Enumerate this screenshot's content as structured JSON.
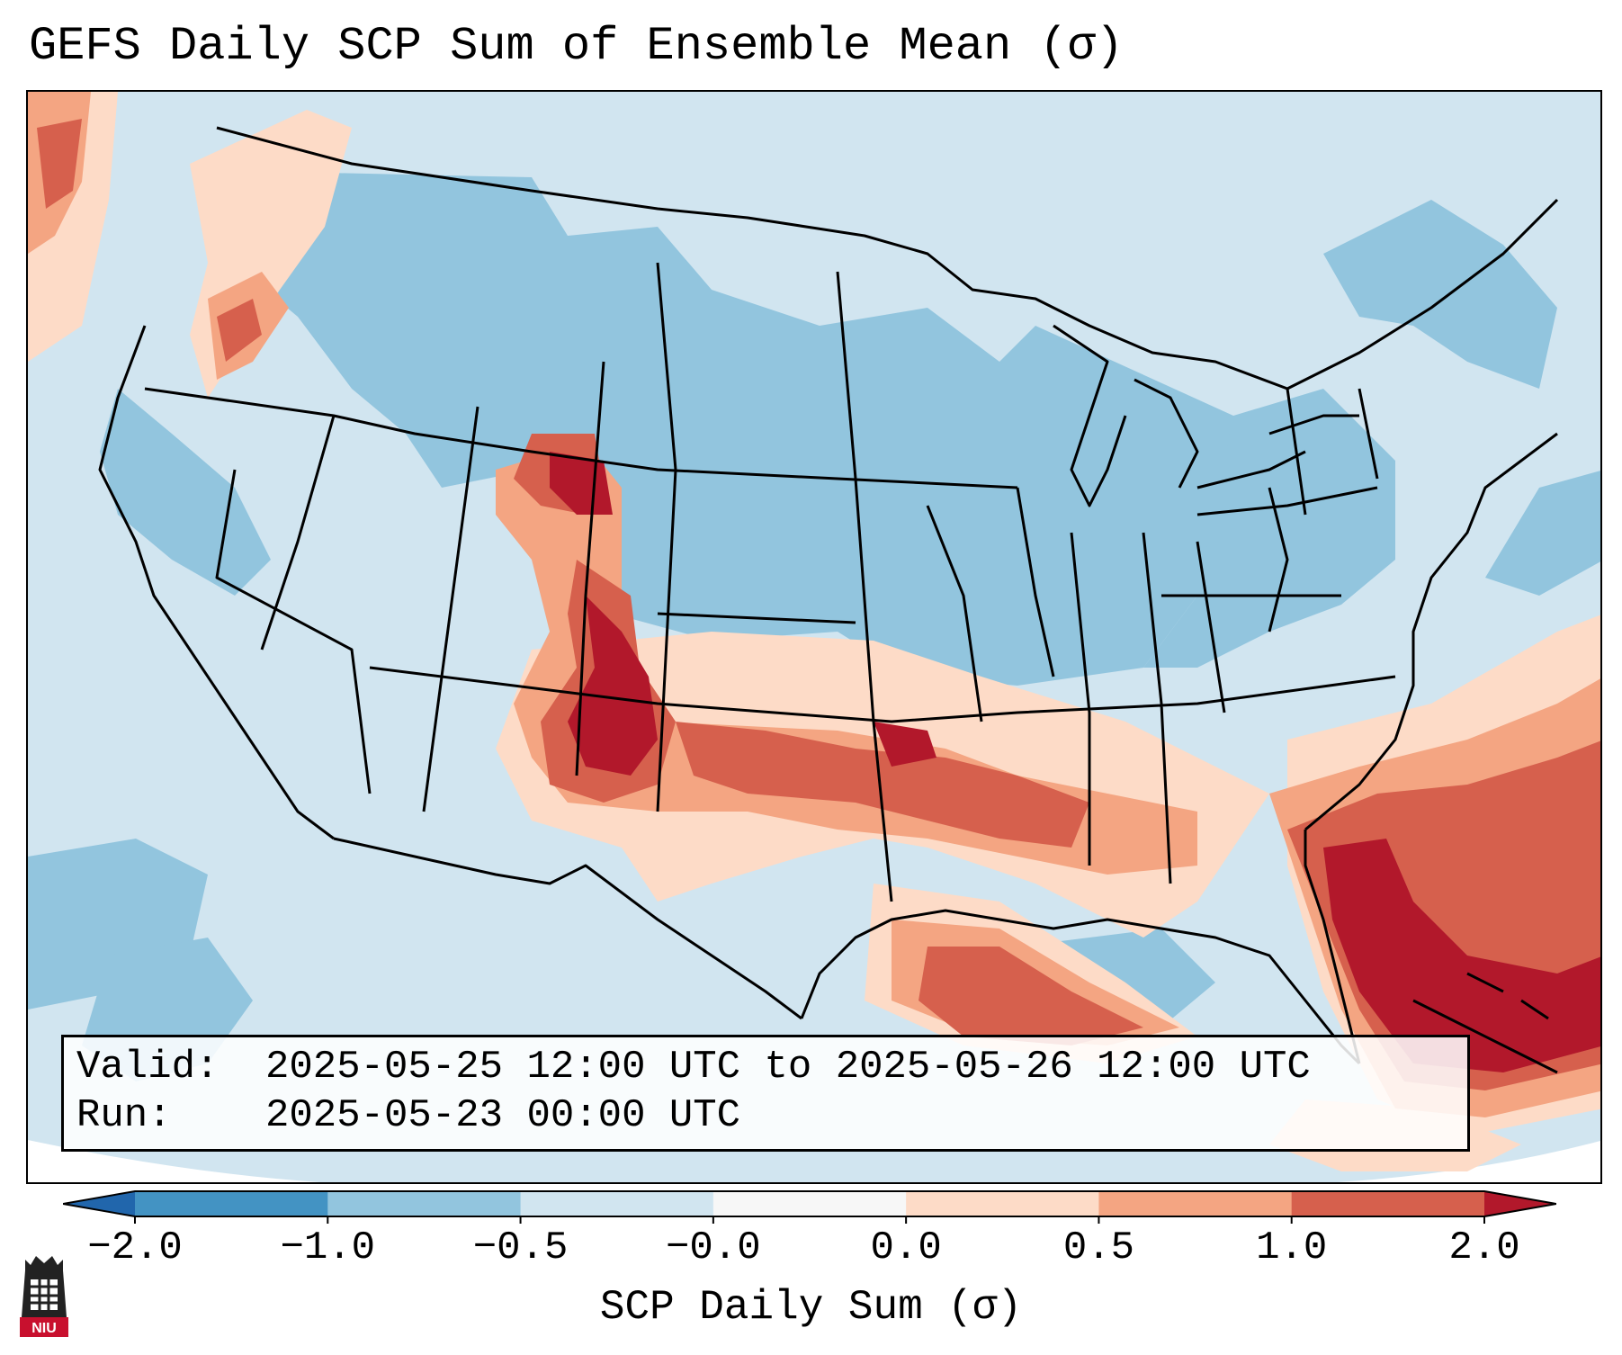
{
  "title": "GEFS Daily SCP Sum of Ensemble Mean (σ)",
  "map": {
    "background_color": "#d1e5f0",
    "ocean_corner_color": "#ffffff",
    "border_color": "#000000",
    "field_regions": [
      {
        "name": "pacific-nw-positive",
        "category": "0.0 to 0.5"
      },
      {
        "name": "plains-dryline-high",
        "category": "1.0 to 2.0"
      },
      {
        "name": "southern-tier-moderate",
        "category": "0.5 to 1.0"
      },
      {
        "name": "gulf-positive",
        "category": "0.5 to 1.0"
      },
      {
        "name": "atlantic-southeast-high",
        "category": "1.0 to 2.0"
      },
      {
        "name": "interior-negative",
        "category": "-1.0 to -0.5"
      },
      {
        "name": "northeast-negative",
        "category": "-1.0 to -0.5"
      }
    ]
  },
  "info_box": {
    "valid_label": "Valid:",
    "valid_value": "2025-05-25 12:00 UTC to 2025-05-26 12:00 UTC",
    "run_label": "Run:",
    "run_value": "2025-05-23 00:00 UTC"
  },
  "colorbar": {
    "label": "SCP Daily Sum (σ)",
    "ticks": [
      "−2.0",
      "−1.0",
      "−0.5",
      "−0.0",
      "0.0",
      "0.5",
      "1.0",
      "2.0"
    ],
    "colors": [
      "#2166ac",
      "#4393c3",
      "#92c5de",
      "#d1e5f0",
      "#f7f7f7",
      "#fddbc7",
      "#f4a582",
      "#d6604d",
      "#b2182b"
    ]
  },
  "logo": {
    "text": "NIU",
    "colors": {
      "tower": "#222222",
      "band": "#c8102e"
    }
  }
}
